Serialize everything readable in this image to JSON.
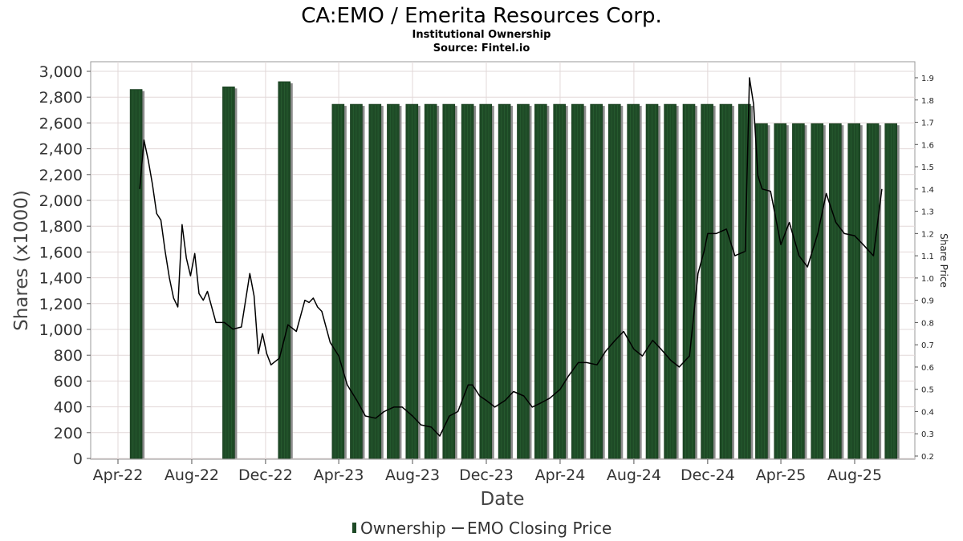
{
  "chart_data": {
    "type": "bar",
    "title": "CA:EMO / Emerita Resources Corp.",
    "subtitle_lines": [
      "Institutional Ownership",
      "Source: Fintel.io"
    ],
    "xlabel": "Date",
    "ylabel": "Shares (x1000)",
    "y2label": "Share Price",
    "ylim": [
      0,
      3100
    ],
    "y2lim": [
      0.19,
      1.96
    ],
    "x_tick_labels": [
      "Apr-22",
      "Aug-22",
      "Dec-22",
      "Apr-23",
      "Aug-23",
      "Dec-23",
      "Apr-24",
      "Aug-24",
      "Dec-24",
      "Apr-25",
      "Aug-25"
    ],
    "y_ticks": [
      0,
      200,
      400,
      600,
      800,
      1000,
      1200,
      1400,
      1600,
      1800,
      2000,
      2200,
      2400,
      2600,
      2800,
      3000
    ],
    "y_tick_labels": [
      "0",
      "200",
      "400",
      "600",
      "800",
      "1,000",
      "1,200",
      "1,400",
      "1,600",
      "1,800",
      "2,000",
      "2,200",
      "2,400",
      "2,600",
      "2,800",
      "3,000"
    ],
    "y2_ticks": [
      0.2,
      0.3,
      0.4,
      0.5,
      0.6,
      0.7,
      0.8,
      0.9,
      1.0,
      1.1,
      1.2,
      1.3,
      1.4,
      1.5,
      1.6,
      1.7,
      1.8,
      1.9
    ],
    "y2_tick_labels": [
      "0.2",
      "0.3",
      "0.4",
      "0.5",
      "0.6",
      "0.7",
      "0.8",
      "0.9",
      "1.0",
      "1.1",
      "1.2",
      "1.3",
      "1.4",
      "1.5",
      "1.6",
      "1.7",
      "1.8",
      "1.9"
    ],
    "grid": true,
    "legend_position": "bottom-center",
    "series": [
      {
        "name": "Ownership",
        "kind": "bar",
        "color": "#1e4a26",
        "x": [
          "2022-05-01",
          "2022-10-01",
          "2023-01-01",
          "2023-03-31",
          "2023-04-30",
          "2023-05-31",
          "2023-06-30",
          "2023-07-31",
          "2023-08-31",
          "2023-09-30",
          "2023-10-31",
          "2023-11-30",
          "2023-12-31",
          "2024-01-31",
          "2024-02-29",
          "2024-03-31",
          "2024-04-30",
          "2024-05-31",
          "2024-06-30",
          "2024-07-31",
          "2024-08-31",
          "2024-09-30",
          "2024-10-31",
          "2024-11-30",
          "2024-12-31",
          "2025-01-31",
          "2025-02-28",
          "2025-03-31",
          "2025-04-30",
          "2025-05-31",
          "2025-06-30",
          "2025-07-31",
          "2025-08-31",
          "2025-09-30"
        ],
        "values": [
          2860,
          2880,
          2920,
          2745,
          2745,
          2745,
          2745,
          2745,
          2745,
          2745,
          2745,
          2745,
          2745,
          2745,
          2745,
          2745,
          2745,
          2745,
          2745,
          2745,
          2745,
          2745,
          2745,
          2745,
          2745,
          2745,
          2595,
          2595,
          2595,
          2595,
          2595,
          2595,
          2595,
          2595
        ]
      },
      {
        "name": "EMO Closing Price",
        "kind": "line",
        "axis": "right",
        "color": "#000000",
        "x": [
          "2022-05-07",
          "2022-05-14",
          "2022-05-21",
          "2022-05-28",
          "2022-06-04",
          "2022-06-11",
          "2022-06-18",
          "2022-06-25",
          "2022-07-02",
          "2022-07-09",
          "2022-07-16",
          "2022-07-23",
          "2022-07-30",
          "2022-08-06",
          "2022-08-13",
          "2022-08-20",
          "2022-08-27",
          "2022-09-03",
          "2022-09-10",
          "2022-09-24",
          "2022-10-08",
          "2022-10-22",
          "2022-11-05",
          "2022-11-12",
          "2022-11-19",
          "2022-11-26",
          "2022-12-03",
          "2022-12-10",
          "2022-12-24",
          "2023-01-07",
          "2023-01-21",
          "2023-02-04",
          "2023-02-11",
          "2023-02-18",
          "2023-02-25",
          "2023-03-04",
          "2023-03-18",
          "2023-04-01",
          "2023-04-15",
          "2023-05-01",
          "2023-05-15",
          "2023-06-01",
          "2023-06-15",
          "2023-07-01",
          "2023-07-15",
          "2023-08-01",
          "2023-08-15",
          "2023-09-01",
          "2023-09-15",
          "2023-10-01",
          "2023-10-15",
          "2023-11-01",
          "2023-11-08",
          "2023-11-20",
          "2023-12-01",
          "2023-12-15",
          "2024-01-01",
          "2024-01-15",
          "2024-02-01",
          "2024-02-15",
          "2024-03-01",
          "2024-03-15",
          "2024-04-01",
          "2024-04-15",
          "2024-05-01",
          "2024-05-15",
          "2024-06-01",
          "2024-06-15",
          "2024-07-01",
          "2024-07-15",
          "2024-08-01",
          "2024-08-15",
          "2024-09-01",
          "2024-09-15",
          "2024-10-01",
          "2024-10-15",
          "2024-11-01",
          "2024-11-15",
          "2024-11-25",
          "2024-12-01",
          "2024-12-15",
          "2025-01-01",
          "2025-01-15",
          "2025-02-01",
          "2025-02-08",
          "2025-02-15",
          "2025-02-22",
          "2025-03-01",
          "2025-03-15",
          "2025-04-01",
          "2025-04-15",
          "2025-05-01",
          "2025-05-15",
          "2025-06-01",
          "2025-06-15",
          "2025-07-01",
          "2025-07-15",
          "2025-08-01",
          "2025-08-15",
          "2025-09-01",
          "2025-09-15"
        ],
        "values": [
          1.4,
          1.62,
          1.53,
          1.42,
          1.29,
          1.26,
          1.12,
          1.0,
          0.91,
          0.87,
          1.24,
          1.09,
          1.01,
          1.11,
          0.93,
          0.9,
          0.94,
          0.87,
          0.8,
          0.8,
          0.77,
          0.78,
          1.02,
          0.92,
          0.66,
          0.75,
          0.66,
          0.61,
          0.64,
          0.79,
          0.76,
          0.9,
          0.89,
          0.91,
          0.87,
          0.85,
          0.71,
          0.65,
          0.52,
          0.45,
          0.38,
          0.37,
          0.4,
          0.42,
          0.42,
          0.38,
          0.34,
          0.33,
          0.29,
          0.38,
          0.4,
          0.52,
          0.52,
          0.47,
          0.45,
          0.42,
          0.45,
          0.49,
          0.47,
          0.42,
          0.44,
          0.46,
          0.5,
          0.56,
          0.62,
          0.62,
          0.61,
          0.67,
          0.72,
          0.76,
          0.68,
          0.65,
          0.72,
          0.68,
          0.63,
          0.6,
          0.65,
          1.02,
          1.12,
          1.2,
          1.2,
          1.22,
          1.1,
          1.12,
          1.9,
          1.78,
          1.46,
          1.4,
          1.39,
          1.15,
          1.25,
          1.1,
          1.05,
          1.2,
          1.38,
          1.25,
          1.2,
          1.19,
          1.15,
          1.1,
          1.4
        ]
      }
    ]
  }
}
